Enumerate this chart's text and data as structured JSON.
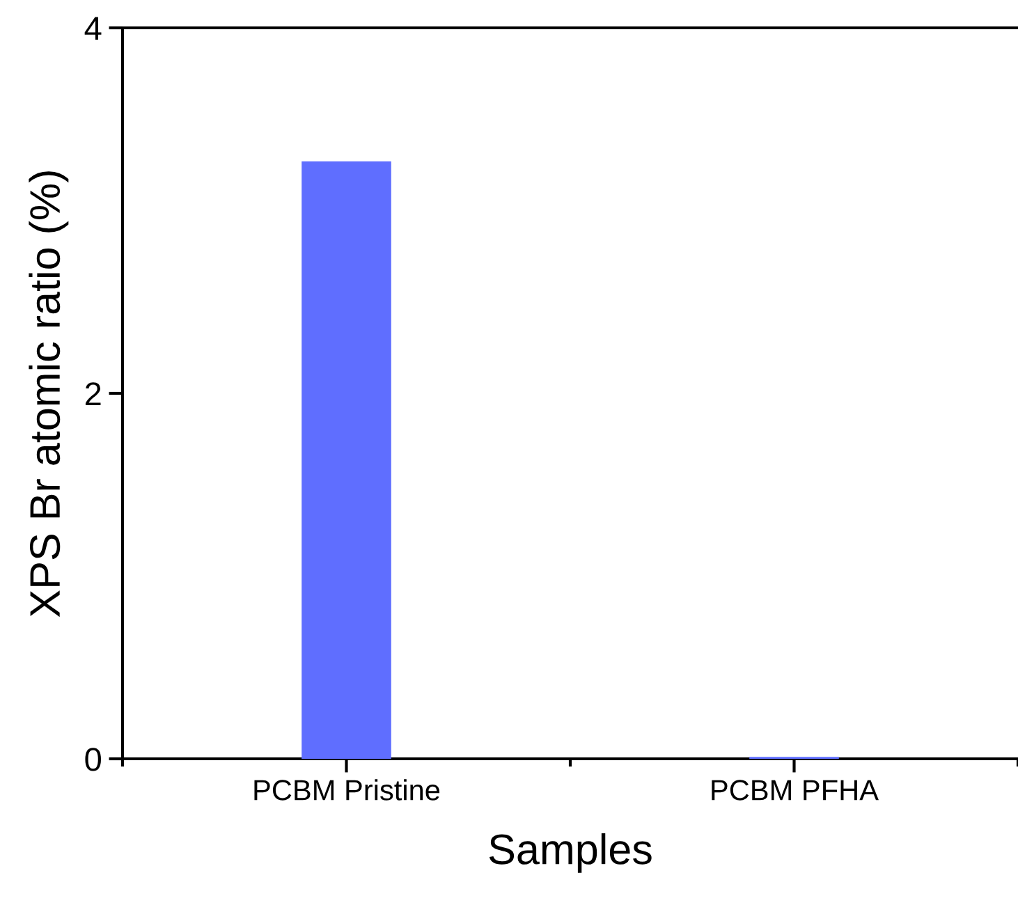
{
  "chart_data": {
    "type": "bar",
    "xlabel": "Samples",
    "ylabel": "XPS Br atomic ratio (%)",
    "categories": [
      "PCBM Pristine",
      "PCBM PFHA"
    ],
    "values": [
      3.27,
      0.01
    ],
    "color": "#5f6eff",
    "ylim": [
      0,
      4
    ],
    "yticks": [
      0,
      2,
      4
    ],
    "grid": false,
    "legend": false
  }
}
